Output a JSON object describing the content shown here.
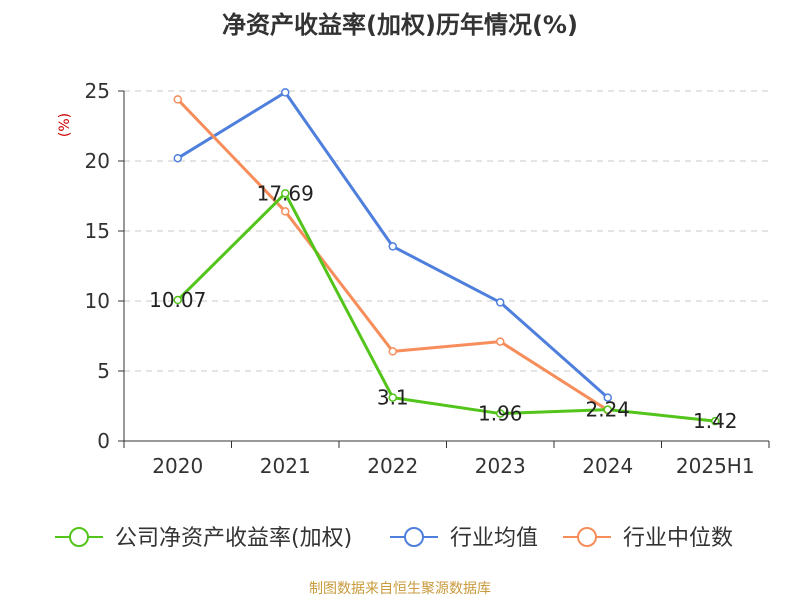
{
  "chart_data": {
    "type": "line",
    "title": "净资产收益率(加权)历年情况(%)",
    "ylabel": "(%)",
    "xlabel": "",
    "categories": [
      "2020",
      "2021",
      "2022",
      "2023",
      "2024",
      "2025H1"
    ],
    "ylim": [
      0,
      25
    ],
    "yticks": [
      0,
      5,
      10,
      15,
      20,
      25
    ],
    "grid": true,
    "legend_position": "bottom",
    "series": [
      {
        "name": "公司净资产收益率(加权)",
        "color": "#52c41a",
        "values": [
          10.07,
          17.69,
          3.1,
          1.96,
          2.24,
          1.42
        ],
        "labels": [
          "10.07",
          "17.69",
          "3.1",
          "1.96",
          "2.24",
          "1.42"
        ]
      },
      {
        "name": "行业均值",
        "color": "#4e7fdc",
        "values": [
          20.2,
          24.9,
          13.9,
          9.9,
          3.1,
          null
        ]
      },
      {
        "name": "行业中位数",
        "color": "#f78d5a",
        "values": [
          24.4,
          16.4,
          6.4,
          7.1,
          2.2,
          null
        ]
      }
    ],
    "source": "制图数据来自恒生聚源数据库"
  }
}
